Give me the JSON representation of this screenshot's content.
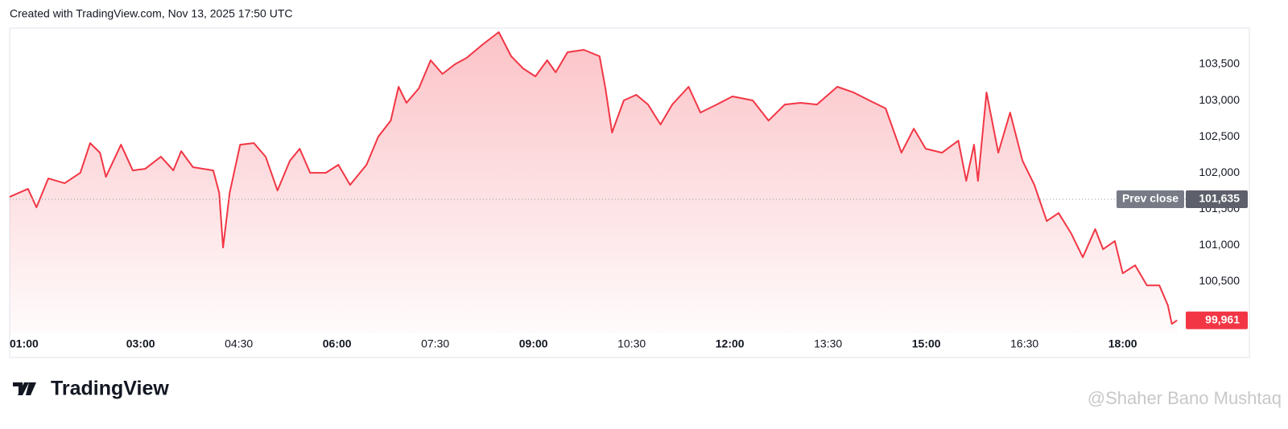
{
  "header": {
    "text": "Created with TradingView.com, Nov 13, 2025 17:50 UTC"
  },
  "chart_data": {
    "type": "area",
    "color": "#f23645",
    "x": [
      1.0,
      1.28,
      1.41,
      1.59,
      1.84,
      2.08,
      2.23,
      2.38,
      2.47,
      2.7,
      2.88,
      3.07,
      3.31,
      3.5,
      3.62,
      3.8,
      4.11,
      4.2,
      4.26,
      4.36,
      4.52,
      4.73,
      4.91,
      5.09,
      5.28,
      5.43,
      5.59,
      5.83,
      6.02,
      6.2,
      6.45,
      6.63,
      6.82,
      6.94,
      7.06,
      7.25,
      7.43,
      7.61,
      7.8,
      7.98,
      8.23,
      8.47,
      8.66,
      8.84,
      9.03,
      9.21,
      9.34,
      9.52,
      9.77,
      10.01,
      10.1,
      10.2,
      10.38,
      10.57,
      10.75,
      10.94,
      11.12,
      11.37,
      11.55,
      11.8,
      12.04,
      12.35,
      12.59,
      12.84,
      13.08,
      13.33,
      13.64,
      13.89,
      14.13,
      14.38,
      14.62,
      14.81,
      14.99,
      15.24,
      15.49,
      15.61,
      15.73,
      15.79,
      15.92,
      16.1,
      16.28,
      16.47,
      16.65,
      16.84,
      17.02,
      17.21,
      17.39,
      17.58,
      17.7,
      17.88,
      18.0,
      18.19,
      18.37,
      18.56,
      18.69,
      18.75,
      18.83
    ],
    "values": [
      101667,
      101778,
      101522,
      101922,
      101856,
      102000,
      102411,
      102278,
      101944,
      102389,
      102033,
      102056,
      102222,
      102033,
      102300,
      102078,
      102033,
      101722,
      100967,
      101722,
      102389,
      102411,
      102222,
      101756,
      102167,
      102333,
      102000,
      102000,
      102111,
      101833,
      102111,
      102500,
      102722,
      103189,
      102967,
      103167,
      103556,
      103367,
      103500,
      103589,
      103778,
      103944,
      103611,
      103444,
      103333,
      103556,
      103389,
      103667,
      103700,
      103611,
      103167,
      102556,
      103000,
      103078,
      102944,
      102667,
      102944,
      103189,
      102833,
      102944,
      103056,
      103000,
      102722,
      102944,
      102967,
      102944,
      103189,
      103111,
      103000,
      102889,
      102278,
      102611,
      102333,
      102278,
      102444,
      101889,
      102389,
      101889,
      103111,
      102278,
      102833,
      102167,
      101833,
      101333,
      101444,
      101167,
      100833,
      101222,
      100944,
      101056,
      100611,
      100722,
      100444,
      100444,
      100167,
      99911,
      99961
    ],
    "xlim": [
      1,
      19
    ],
    "xticks": [
      {
        "value": 1,
        "label": "01:00"
      },
      {
        "value": 3,
        "label": "03:00"
      },
      {
        "value": 4.5,
        "label": "04:30"
      },
      {
        "value": 6,
        "label": "06:00"
      },
      {
        "value": 7.5,
        "label": "07:30"
      },
      {
        "value": 9,
        "label": "09:00"
      },
      {
        "value": 10.5,
        "label": "10:30"
      },
      {
        "value": 12,
        "label": "12:00"
      },
      {
        "value": 13.5,
        "label": "13:30"
      },
      {
        "value": 15,
        "label": "15:00"
      },
      {
        "value": 16.5,
        "label": "16:30"
      },
      {
        "value": 18,
        "label": "18:00"
      }
    ],
    "ylim": [
      99780,
      104000
    ],
    "yticks": [
      {
        "value": 100500,
        "label": "100,500"
      },
      {
        "value": 101000,
        "label": "101,000"
      },
      {
        "value": 101500,
        "label": "101,500"
      },
      {
        "value": 102000,
        "label": "102,000"
      },
      {
        "value": 102500,
        "label": "102,500"
      },
      {
        "value": 103000,
        "label": "103,000"
      },
      {
        "value": 103500,
        "label": "103,500"
      }
    ],
    "prev_close": {
      "name": "Prev close",
      "value": 101635,
      "label": "101,635"
    },
    "last_price": {
      "value": 99961,
      "label": "99,961"
    }
  },
  "footer": {
    "logo": "TradingView",
    "watermark": "@Shaher Bano Mushtaq"
  }
}
